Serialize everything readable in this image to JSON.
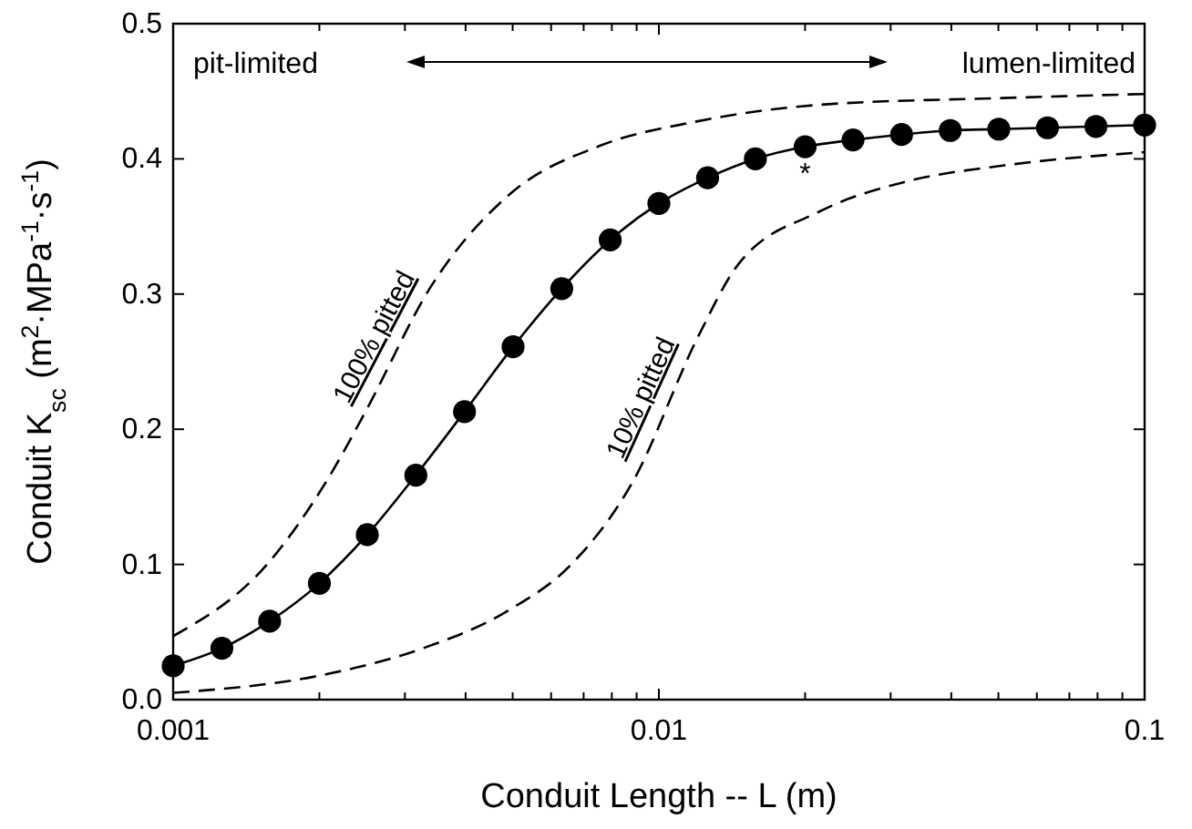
{
  "chart_data": {
    "type": "line",
    "xlabel": "Conduit Length -- L (m)",
    "ylabel": "Conduit K$_{sc}$ (m$^{2}$·MPa$^{-1}$·s$^{-1}$)",
    "log": "x",
    "xlim": [
      0.001,
      0.1
    ],
    "ylim": [
      0,
      0.5
    ],
    "xticks": [
      0.001,
      {
        "value": 0.002,
        "label": null
      },
      {
        "value": 0.003,
        "label": null
      },
      {
        "value": 0.004,
        "label": null
      },
      {
        "value": 0.005,
        "label": null
      },
      {
        "value": 0.006,
        "label": null
      },
      {
        "value": 0.007,
        "label": null
      },
      {
        "value": 0.008,
        "label": null
      },
      {
        "value": 0.009,
        "label": null
      },
      0.01,
      {
        "value": 0.02,
        "label": null
      },
      {
        "value": 0.03,
        "label": null
      },
      {
        "value": 0.04,
        "label": null
      },
      {
        "value": 0.05,
        "label": null
      },
      {
        "value": 0.06,
        "label": null
      },
      {
        "value": 0.07,
        "label": null
      },
      {
        "value": 0.08,
        "label": null
      },
      {
        "value": 0.09,
        "label": null
      },
      0.1
    ],
    "yticks": [
      {
        "value": 0,
        "label": "0.0"
      },
      0.1,
      0.2,
      0.3,
      0.4,
      0.5
    ],
    "grid": false,
    "series": [
      {
        "color": "#000000",
        "marker": "circle",
        "line_style": "solid",
        "x": [
          0.001,
          0.00126,
          0.00158,
          0.002,
          0.00251,
          0.00316,
          0.00398,
          0.00501,
          0.00631,
          0.00794,
          0.01,
          0.0126,
          0.0158,
          0.02,
          0.0251,
          0.0316,
          0.0398,
          0.0501,
          0.0631,
          0.0794,
          0.1
        ],
        "values": [
          0.025,
          0.038,
          0.058,
          0.086,
          0.122,
          0.166,
          0.213,
          0.261,
          0.304,
          0.34,
          0.367,
          0.386,
          0.4,
          0.409,
          0.414,
          0.418,
          0.421,
          0.422,
          0.423,
          0.424,
          0.425
        ]
      },
      {
        "name": "100% pitted",
        "color": "#000000",
        "marker": "none",
        "line_style": "dashed",
        "x": [
          0.001,
          0.00156,
          0.00208,
          0.00248,
          0.0034,
          0.0049,
          0.0076,
          0.0117,
          0.0214,
          0.051,
          0.1
        ],
        "values": [
          0.047,
          0.1,
          0.163,
          0.212,
          0.306,
          0.373,
          0.41,
          0.427,
          0.44,
          0.445,
          0.448
        ]
      },
      {
        "name": "10% pitted",
        "color": "#000000",
        "marker": "none",
        "line_style": "dashed",
        "x": [
          0.001,
          0.00208,
          0.00321,
          0.0049,
          0.0066,
          0.0088,
          0.0121,
          0.0145,
          0.0214,
          0.033,
          0.051,
          0.1
        ],
        "values": [
          0.005,
          0.019,
          0.037,
          0.066,
          0.1,
          0.16,
          0.27,
          0.321,
          0.361,
          0.384,
          0.395,
          0.405
        ]
      }
    ],
    "annotations": [
      "pit-limited",
      "lumen-limited",
      {
        "text": "*",
        "x": 0.02,
        "y": 0.409
      }
    ]
  }
}
